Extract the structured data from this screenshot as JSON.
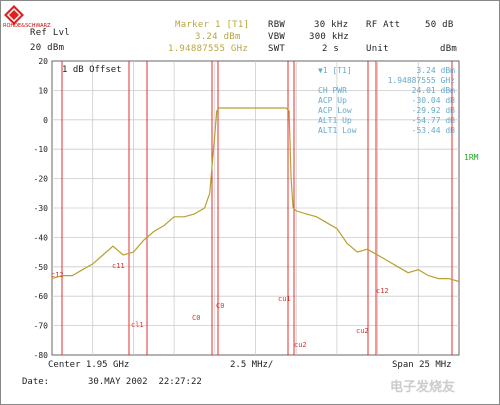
{
  "header": {
    "ref_lvl_label": "Ref Lvl",
    "ref_lvl_value": "20 dBm",
    "marker_label": "Marker 1 [T1]",
    "marker_level": "3.24 dBm",
    "marker_freq": "1.94887555 GHz",
    "rbw_label": "RBW",
    "rbw_value": "30 kHz",
    "vbw_label": "VBW",
    "vbw_value": "300 kHz",
    "swt_label": "SWT",
    "swt_value": "2 s",
    "rf_att_label": "RF Att",
    "rf_att_value": "50 dB",
    "unit_label": "Unit",
    "unit_value": "dBm"
  },
  "plot": {
    "offset_label": "1 dB Offset",
    "side_label": "1RM",
    "trace_color": "#b8a030",
    "line_color": "#e03030",
    "table_color": "#66aacc",
    "marker_table": [
      {
        "name": "▼1 [T1]",
        "value": "3.24 dBm"
      },
      {
        "name": "",
        "value": "1.94887555 GHz"
      },
      {
        "name": "CH PWR",
        "value": "24.01 dBm"
      },
      {
        "name": "ACP Up",
        "value": "-30.04 dB"
      },
      {
        "name": "ACP Low",
        "value": "-29.92 dB"
      },
      {
        "name": "ALT1 Up",
        "value": "-54.77 dB"
      },
      {
        "name": "ALT1 Low",
        "value": "-53.44 dB"
      }
    ],
    "channel_labels": [
      "c12",
      "c11",
      "cl1",
      "C0",
      "C0",
      "cu1",
      "cu2",
      "cu2",
      "c12"
    ]
  },
  "chart_data": {
    "type": "line",
    "title": "",
    "xlabel": "",
    "ylabel": "",
    "ylim": [
      -80,
      20
    ],
    "yticks": [
      20,
      10,
      0,
      -10,
      -20,
      -30,
      -40,
      -50,
      -60,
      -70,
      -80
    ],
    "grid": true,
    "series": [
      {
        "x": [
          0,
          10,
          20,
          30,
          40,
          50,
          60,
          70,
          80,
          90,
          100,
          110,
          120,
          130,
          140,
          150,
          155,
          160,
          162,
          164,
          166,
          170,
          180,
          190,
          200,
          210,
          220,
          230,
          233,
          235,
          237,
          240,
          250,
          260,
          270,
          280,
          290,
          300,
          310,
          320,
          330,
          340,
          350,
          360,
          370,
          380,
          390,
          400
        ],
        "values": [
          -54,
          -53,
          -53,
          -51,
          -49,
          -46,
          -43,
          -46,
          -45,
          -41,
          -38,
          -36,
          -33,
          -33,
          -32,
          -30,
          -25,
          -5,
          3,
          4,
          4,
          4,
          4,
          4,
          4,
          4,
          4,
          4,
          3,
          -20,
          -30,
          -31,
          -32,
          -33,
          -35,
          -37,
          -42,
          -45,
          -44,
          -46,
          -48,
          -50,
          -52,
          -51,
          -53,
          -54,
          -54,
          -55
        ]
      }
    ]
  },
  "footer": {
    "center_label": "Center 1.95 GHz",
    "span_per_div": "2.5 MHz/",
    "span_label": "Span 25 MHz",
    "date_label": "Date:",
    "date_value": "30.MAY 2002  22:27:22"
  },
  "watermark": "电子发烧友"
}
